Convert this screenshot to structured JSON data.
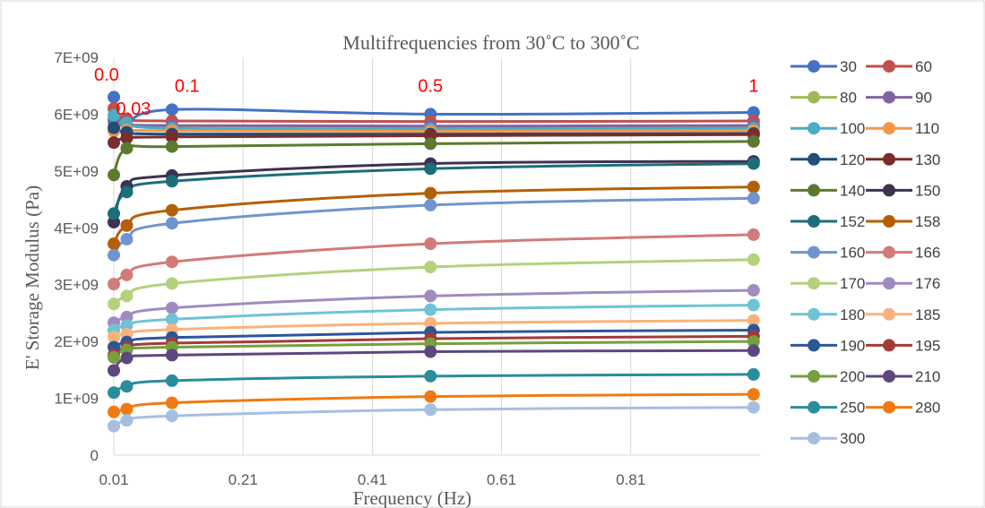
{
  "chart_data": {
    "type": "line",
    "title": "Multifrequencies from 30˚C to 300˚C",
    "xlabel": "Frequency (Hz)",
    "ylabel": "E' Storage Modulus (Pa)",
    "xlim": [
      0.01,
      1.01
    ],
    "ylim": [
      0,
      7000000000
    ],
    "x_ticks": [
      "0.01",
      "0.21",
      "0.41",
      "0.61",
      "0.81"
    ],
    "y_ticks": [
      "0",
      "1E+09",
      "2E+09",
      "3E+09",
      "4E+09",
      "5E+09",
      "6E+09",
      "7E+09"
    ],
    "grid": "vertical",
    "legend_position": "right",
    "x": [
      0.01,
      0.03,
      0.1,
      0.5,
      1
    ],
    "annotations": [
      {
        "text": "0.0",
        "x": 0.01,
        "y": 6700000000
      },
      {
        "text": "0.03",
        "x": 0.03,
        "y": 6100000000
      },
      {
        "text": "0.1",
        "x": 0.1,
        "y": 6500000000
      },
      {
        "text": "0.5",
        "x": 0.5,
        "y": 6500000000
      },
      {
        "text": "1",
        "x": 1,
        "y": 6500000000
      }
    ],
    "series": [
      {
        "name": "30",
        "color": "#4472c4",
        "values": [
          6300000000,
          5800000000,
          6080000000,
          6000000000,
          6030000000
        ]
      },
      {
        "name": "60",
        "color": "#c0504d",
        "values": [
          6100000000,
          5920000000,
          5880000000,
          5870000000,
          5880000000
        ]
      },
      {
        "name": "80",
        "color": "#9bbb59",
        "values": [
          5850000000,
          5800000000,
          5790000000,
          5780000000,
          5790000000
        ]
      },
      {
        "name": "90",
        "color": "#8064a2",
        "values": [
          5900000000,
          5820000000,
          5800000000,
          5790000000,
          5800000000
        ]
      },
      {
        "name": "100",
        "color": "#4bacc6",
        "values": [
          5980000000,
          5850000000,
          5750000000,
          5740000000,
          5750000000
        ]
      },
      {
        "name": "110",
        "color": "#f79646",
        "values": [
          5700000000,
          5720000000,
          5710000000,
          5700000000,
          5710000000
        ]
      },
      {
        "name": "120",
        "color": "#1f4e79",
        "values": [
          5760000000,
          5680000000,
          5650000000,
          5650000000,
          5660000000
        ]
      },
      {
        "name": "130",
        "color": "#7b2c2c",
        "values": [
          5500000000,
          5580000000,
          5600000000,
          5620000000,
          5640000000
        ]
      },
      {
        "name": "140",
        "color": "#5b7a2e",
        "values": [
          4930000000,
          5400000000,
          5430000000,
          5480000000,
          5520000000
        ]
      },
      {
        "name": "150",
        "color": "#3f3151",
        "values": [
          4100000000,
          4730000000,
          4920000000,
          5130000000,
          5170000000
        ]
      },
      {
        "name": "152",
        "color": "#1b6f7a",
        "values": [
          4250000000,
          4630000000,
          4820000000,
          5040000000,
          5130000000
        ]
      },
      {
        "name": "158",
        "color": "#b45f06",
        "values": [
          3720000000,
          4040000000,
          4310000000,
          4610000000,
          4720000000
        ]
      },
      {
        "name": "160",
        "color": "#7094d0",
        "values": [
          3520000000,
          3800000000,
          4080000000,
          4400000000,
          4520000000
        ]
      },
      {
        "name": "166",
        "color": "#d27b78",
        "values": [
          3010000000,
          3170000000,
          3400000000,
          3720000000,
          3880000000
        ]
      },
      {
        "name": "170",
        "color": "#b4d17c",
        "values": [
          2660000000,
          2800000000,
          3020000000,
          3310000000,
          3440000000
        ]
      },
      {
        "name": "176",
        "color": "#a08bc0",
        "values": [
          2330000000,
          2430000000,
          2590000000,
          2800000000,
          2900000000
        ]
      },
      {
        "name": "180",
        "color": "#6fc3d6",
        "values": [
          2200000000,
          2280000000,
          2390000000,
          2560000000,
          2640000000
        ]
      },
      {
        "name": "185",
        "color": "#f9b27a",
        "values": [
          2080000000,
          2130000000,
          2210000000,
          2320000000,
          2370000000
        ]
      },
      {
        "name": "190",
        "color": "#2e5597",
        "values": [
          1900000000,
          1990000000,
          2070000000,
          2160000000,
          2200000000
        ]
      },
      {
        "name": "195",
        "color": "#a23b38",
        "values": [
          1760000000,
          1900000000,
          1970000000,
          2050000000,
          2090000000
        ]
      },
      {
        "name": "200",
        "color": "#76a03d",
        "values": [
          1720000000,
          1850000000,
          1900000000,
          1960000000,
          2000000000
        ]
      },
      {
        "name": "210",
        "color": "#5e467f",
        "values": [
          1490000000,
          1710000000,
          1760000000,
          1820000000,
          1840000000
        ]
      },
      {
        "name": "250",
        "color": "#2a8c9c",
        "values": [
          1100000000,
          1210000000,
          1310000000,
          1390000000,
          1420000000
        ]
      },
      {
        "name": "280",
        "color": "#f07a10",
        "values": [
          760000000,
          810000000,
          920000000,
          1030000000,
          1070000000
        ]
      },
      {
        "name": "300",
        "color": "#a6bfe0",
        "values": [
          510000000,
          610000000,
          690000000,
          800000000,
          840000000
        ]
      }
    ]
  }
}
